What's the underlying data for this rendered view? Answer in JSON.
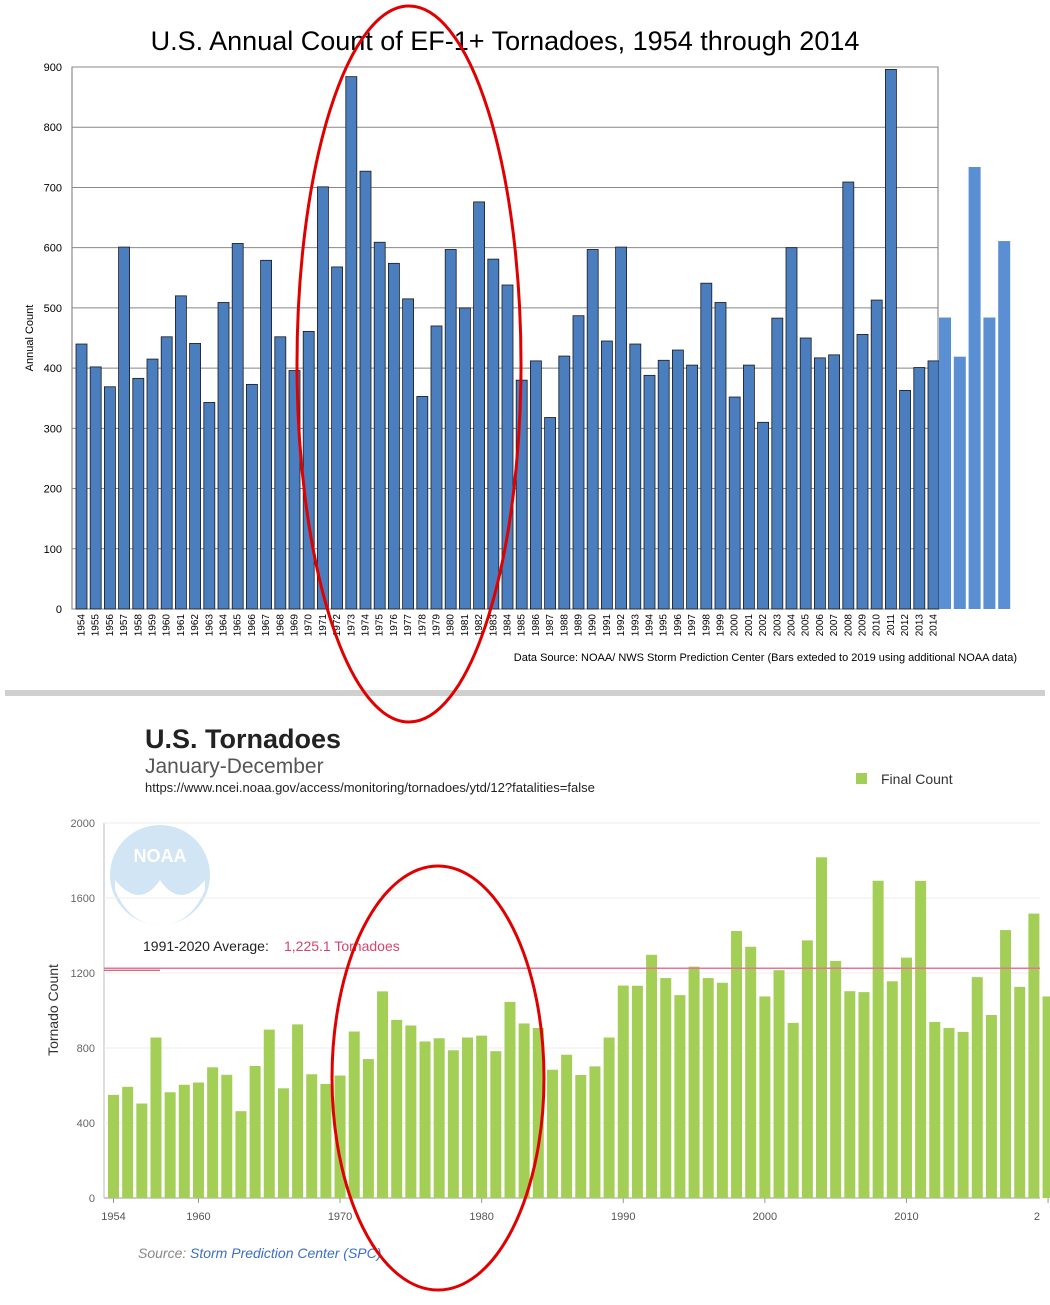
{
  "chart_data": [
    {
      "type": "bar",
      "title": "U.S. Annual Count of EF-1+ Tornadoes, 1954 through 2014",
      "ylabel": "Annual Count",
      "xlabel": "",
      "ylim": [
        0,
        900
      ],
      "yticks": [
        0,
        100,
        200,
        300,
        400,
        500,
        600,
        700,
        800,
        900
      ],
      "grid": true,
      "source_note": "Data Source: NOAA/ NWS Storm Prediction Center (Bars exteded to 2019 using additional NOAA data)",
      "categories": [
        "1954",
        "1955",
        "1956",
        "1957",
        "1958",
        "1959",
        "1960",
        "1961",
        "1962",
        "1963",
        "1964",
        "1965",
        "1966",
        "1967",
        "1968",
        "1969",
        "1970",
        "1971",
        "1972",
        "1973",
        "1974",
        "1975",
        "1976",
        "1977",
        "1978",
        "1979",
        "1980",
        "1981",
        "1982",
        "1983",
        "1984",
        "1985",
        "1986",
        "1987",
        "1988",
        "1989",
        "1990",
        "1991",
        "1992",
        "1993",
        "1994",
        "1995",
        "1996",
        "1997",
        "1998",
        "1999",
        "2000",
        "2001",
        "2002",
        "2003",
        "2004",
        "2005",
        "2006",
        "2007",
        "2008",
        "2009",
        "2010",
        "2011",
        "2012",
        "2013",
        "2014"
      ],
      "values": [
        440,
        402,
        369,
        601,
        383,
        415,
        452,
        520,
        441,
        343,
        509,
        607,
        373,
        579,
        452,
        396,
        461,
        701,
        568,
        884,
        727,
        609,
        574,
        515,
        353,
        470,
        597,
        500,
        676,
        581,
        538,
        380,
        412,
        318,
        420,
        487,
        597,
        445,
        601,
        440,
        388,
        413,
        430,
        405,
        541,
        509,
        352,
        405,
        310,
        483,
        600,
        450,
        417,
        422,
        709,
        456,
        513,
        896,
        363,
        401,
        412
      ],
      "bar_color": "#4A7EBF",
      "extension": {
        "label": "2015-2019 (additional NOAA data)",
        "values": [
          484,
          419,
          734,
          484,
          611
        ],
        "color": "#5B8FD4"
      },
      "annotation": "red ellipse highlighting 1970-1984"
    },
    {
      "type": "bar",
      "title": "U.S. Tornadoes",
      "subtitle": "January-December",
      "url": "https://www.ncei.noaa.gov/access/monitoring/tornadoes/ytd/12?fatalities=false",
      "ylabel": "Tornado Count",
      "xlabel": "",
      "ylim": [
        0,
        2000
      ],
      "yticks": [
        0,
        400,
        800,
        1200,
        1600,
        2000
      ],
      "xtick_labels": [
        "1954",
        "1960",
        "1970",
        "1980",
        "1990",
        "2000",
        "2010",
        "2"
      ],
      "legend": "Final Count",
      "legend_position": "top-right",
      "logo_text": "NOAA",
      "average_label": "1991-2020 Average:",
      "average_value_text": "1,225.1 Tornadoes",
      "average_value": 1225.1,
      "source_prefix": "Source:",
      "source_link": "Storm Prediction Center (SPC)",
      "bar_color": "#A3CF57",
      "average_color": "#E5749A",
      "annotation": "red ellipse highlighting 1970-1985",
      "x": [
        1954,
        1955,
        1956,
        1957,
        1958,
        1959,
        1960,
        1961,
        1962,
        1963,
        1964,
        1965,
        1966,
        1967,
        1968,
        1969,
        1970,
        1971,
        1972,
        1973,
        1974,
        1975,
        1976,
        1977,
        1978,
        1979,
        1980,
        1981,
        1982,
        1983,
        1984,
        1985,
        1986,
        1987,
        1988,
        1989,
        1990,
        1991,
        1992,
        1993,
        1994,
        1995,
        1996,
        1997,
        1998,
        1999,
        2000,
        2001,
        2002,
        2003,
        2004,
        2005,
        2006,
        2007,
        2008,
        2009,
        2010,
        2011,
        2012,
        2013,
        2014,
        2015,
        2016,
        2017,
        2018,
        2019,
        2020
      ],
      "values": [
        550,
        593,
        504,
        856,
        564,
        604,
        616,
        697,
        657,
        463,
        704,
        898,
        585,
        926,
        660,
        608,
        653,
        888,
        741,
        1102,
        950,
        920,
        835,
        852,
        788,
        856,
        866,
        783,
        1046,
        931,
        907,
        684,
        764,
        656,
        702,
        856,
        1133,
        1132,
        1297,
        1173,
        1082,
        1234,
        1173,
        1148,
        1424,
        1340,
        1075,
        1215,
        934,
        1374,
        1817,
        1264,
        1103,
        1098,
        1692,
        1156,
        1282,
        1691,
        939,
        907,
        886,
        1178,
        976,
        1429,
        1126,
        1517,
        1075
      ]
    }
  ],
  "colors": {
    "highlight_ellipse": "#E00000",
    "divider": "#CCCCCC",
    "link": "#3A6FC7"
  }
}
